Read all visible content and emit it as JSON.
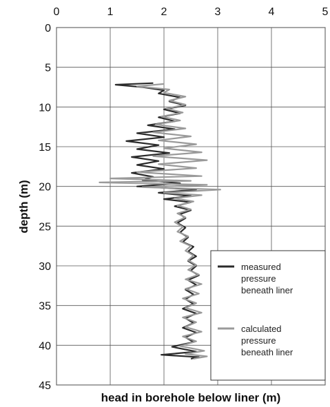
{
  "chart_data": {
    "type": "line",
    "xlabel": "head in borehole below liner (m)",
    "ylabel": "depth (m)",
    "xlim": [
      0,
      5
    ],
    "ylim": [
      0,
      45
    ],
    "y_inverted": true,
    "x_axis_position": "top",
    "x_ticks": [
      "0",
      "1",
      "2",
      "3",
      "4",
      "5"
    ],
    "y_ticks": [
      "0",
      "5",
      "10",
      "15",
      "20",
      "25",
      "30",
      "35",
      "40",
      "45"
    ],
    "grid": true,
    "legend_position": "bottom-right",
    "series": [
      {
        "name": "measured\npressure\nbeneath liner",
        "color": "#2a2a2a",
        "points": [
          [
            1.8,
            7.0
          ],
          [
            1.1,
            7.2
          ],
          [
            1.6,
            7.5
          ],
          [
            2.0,
            7.9
          ],
          [
            1.9,
            8.3
          ],
          [
            2.3,
            8.8
          ],
          [
            2.1,
            9.3
          ],
          [
            2.4,
            9.8
          ],
          [
            2.0,
            10.3
          ],
          [
            2.3,
            10.8
          ],
          [
            1.9,
            11.3
          ],
          [
            2.2,
            11.8
          ],
          [
            1.7,
            12.3
          ],
          [
            2.2,
            12.8
          ],
          [
            1.5,
            13.3
          ],
          [
            2.0,
            13.8
          ],
          [
            1.3,
            14.3
          ],
          [
            1.9,
            14.8
          ],
          [
            1.5,
            15.3
          ],
          [
            2.1,
            15.8
          ],
          [
            1.4,
            16.3
          ],
          [
            1.9,
            16.8
          ],
          [
            1.5,
            17.3
          ],
          [
            2.0,
            17.8
          ],
          [
            1.4,
            18.3
          ],
          [
            1.8,
            18.8
          ],
          [
            1.6,
            19.2
          ],
          [
            2.3,
            19.6
          ],
          [
            1.5,
            20.0
          ],
          [
            2.6,
            20.4
          ],
          [
            1.9,
            20.8
          ],
          [
            2.5,
            21.2
          ],
          [
            2.0,
            21.6
          ],
          [
            2.5,
            22.0
          ],
          [
            2.2,
            22.5
          ],
          [
            2.5,
            23.0
          ],
          [
            2.3,
            23.5
          ],
          [
            2.4,
            24.0
          ],
          [
            2.25,
            24.6
          ],
          [
            2.4,
            25.2
          ],
          [
            2.3,
            25.8
          ],
          [
            2.45,
            26.4
          ],
          [
            2.35,
            27.0
          ],
          [
            2.55,
            27.6
          ],
          [
            2.45,
            28.2
          ],
          [
            2.6,
            28.8
          ],
          [
            2.45,
            29.4
          ],
          [
            2.6,
            30.0
          ],
          [
            2.5,
            30.6
          ],
          [
            2.65,
            31.2
          ],
          [
            2.45,
            31.8
          ],
          [
            2.6,
            32.4
          ],
          [
            2.4,
            33.0
          ],
          [
            2.55,
            33.6
          ],
          [
            2.4,
            34.2
          ],
          [
            2.55,
            34.8
          ],
          [
            2.35,
            35.4
          ],
          [
            2.6,
            36.0
          ],
          [
            2.4,
            36.6
          ],
          [
            2.55,
            37.2
          ],
          [
            2.35,
            37.8
          ],
          [
            2.6,
            38.4
          ],
          [
            2.4,
            39.0
          ],
          [
            2.55,
            39.6
          ],
          [
            2.15,
            40.2
          ],
          [
            2.6,
            40.8
          ],
          [
            1.95,
            41.2
          ],
          [
            2.65,
            41.5
          ],
          [
            2.5,
            41.7
          ]
        ]
      },
      {
        "name": "calculated\npressure\nbeneath liner",
        "color": "#9a9a9a",
        "points": [
          [
            2.0,
            7.1
          ],
          [
            1.5,
            7.4
          ],
          [
            2.1,
            7.8
          ],
          [
            2.0,
            8.2
          ],
          [
            2.4,
            8.7
          ],
          [
            2.1,
            9.2
          ],
          [
            2.4,
            9.7
          ],
          [
            2.05,
            10.2
          ],
          [
            2.35,
            10.7
          ],
          [
            1.95,
            11.2
          ],
          [
            2.3,
            11.7
          ],
          [
            1.85,
            12.2
          ],
          [
            2.4,
            12.7
          ],
          [
            1.8,
            13.2
          ],
          [
            2.5,
            13.7
          ],
          [
            1.9,
            14.2
          ],
          [
            2.6,
            14.7
          ],
          [
            2.0,
            15.2
          ],
          [
            2.7,
            15.7
          ],
          [
            1.8,
            16.2
          ],
          [
            2.8,
            16.7
          ],
          [
            1.9,
            17.2
          ],
          [
            2.6,
            17.7
          ],
          [
            1.5,
            18.2
          ],
          [
            2.7,
            18.7
          ],
          [
            1.0,
            19.0
          ],
          [
            2.5,
            19.3
          ],
          [
            0.8,
            19.5
          ],
          [
            2.8,
            19.8
          ],
          [
            1.6,
            20.1
          ],
          [
            3.05,
            20.4
          ],
          [
            2.0,
            20.8
          ],
          [
            2.7,
            21.1
          ],
          [
            2.2,
            21.5
          ],
          [
            2.55,
            21.9
          ],
          [
            2.25,
            22.4
          ],
          [
            2.5,
            22.9
          ],
          [
            2.25,
            23.4
          ],
          [
            2.4,
            23.9
          ],
          [
            2.2,
            24.5
          ],
          [
            2.35,
            25.1
          ],
          [
            2.25,
            25.7
          ],
          [
            2.45,
            26.3
          ],
          [
            2.3,
            26.9
          ],
          [
            2.5,
            27.5
          ],
          [
            2.4,
            28.1
          ],
          [
            2.55,
            28.7
          ],
          [
            2.45,
            29.3
          ],
          [
            2.6,
            29.9
          ],
          [
            2.45,
            30.5
          ],
          [
            2.65,
            31.1
          ],
          [
            2.4,
            31.7
          ],
          [
            2.7,
            32.3
          ],
          [
            2.4,
            32.9
          ],
          [
            2.65,
            33.5
          ],
          [
            2.35,
            34.1
          ],
          [
            2.6,
            34.7
          ],
          [
            2.4,
            35.3
          ],
          [
            2.7,
            35.9
          ],
          [
            2.35,
            36.5
          ],
          [
            2.6,
            37.1
          ],
          [
            2.4,
            37.7
          ],
          [
            2.7,
            38.3
          ],
          [
            2.35,
            38.9
          ],
          [
            2.6,
            39.5
          ],
          [
            2.3,
            40.1
          ],
          [
            2.75,
            40.7
          ],
          [
            2.4,
            41.1
          ],
          [
            2.8,
            41.4
          ],
          [
            2.55,
            41.7
          ]
        ]
      }
    ]
  }
}
